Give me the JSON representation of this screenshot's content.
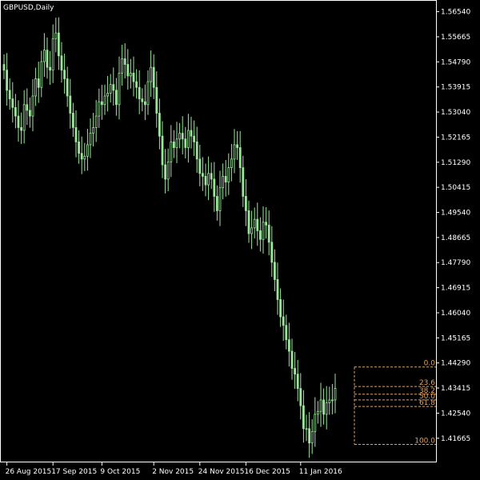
{
  "chart_data": {
    "type": "candlestick",
    "title": "GBPUSD,Daily",
    "ylim": [
      1.4085,
      1.5692
    ],
    "y_ticks": [
      "1.56540",
      "1.55665",
      "1.54790",
      "1.53915",
      "1.53040",
      "1.52165",
      "1.51290",
      "1.50415",
      "1.49540",
      "1.48665",
      "1.47790",
      "1.46915",
      "1.46040",
      "1.45165",
      "1.44290",
      "1.43415",
      "1.42540",
      "1.41665"
    ],
    "x_ticks": [
      "26 Aug 2015",
      "17 Sep 2015",
      "9 Oct 2015",
      "2 Nov 2015",
      "24 Nov 2015",
      "16 Dec 2015",
      "11 Jan 2016"
    ],
    "x_tick_bar_index": [
      1,
      17,
      34,
      52,
      68,
      84,
      103
    ],
    "close": [
      1.545,
      1.538,
      1.535,
      1.532,
      1.529,
      1.525,
      1.524,
      1.533,
      1.531,
      1.529,
      1.536,
      1.542,
      1.539,
      1.548,
      1.552,
      1.546,
      1.545,
      1.556,
      1.558,
      1.55,
      1.545,
      1.542,
      1.536,
      1.53,
      1.525,
      1.52,
      1.516,
      1.514,
      1.515,
      1.519,
      1.523,
      1.525,
      1.529,
      1.534,
      1.533,
      1.536,
      1.537,
      1.54,
      1.538,
      1.533,
      1.544,
      1.549,
      1.547,
      1.543,
      1.544,
      1.541,
      1.539,
      1.535,
      1.534,
      1.533,
      1.541,
      1.546,
      1.539,
      1.53,
      1.522,
      1.512,
      1.507,
      1.513,
      1.52,
      1.518,
      1.521,
      1.523,
      1.521,
      1.518,
      1.524,
      1.522,
      1.52,
      1.514,
      1.509,
      1.508,
      1.505,
      1.509,
      1.507,
      1.501,
      1.496,
      1.504,
      1.508,
      1.506,
      1.511,
      1.514,
      1.519,
      1.518,
      1.511,
      1.501,
      1.496,
      1.488,
      1.49,
      1.493,
      1.489,
      1.486,
      1.492,
      1.491,
      1.485,
      1.478,
      1.472,
      1.465,
      1.459,
      1.456,
      1.451,
      1.447,
      1.441,
      1.439,
      1.434,
      1.428,
      1.42,
      1.42,
      1.415,
      1.419,
      1.425,
      1.426,
      1.43,
      1.425,
      1.429,
      1.43,
      1.43,
      1.434
    ],
    "fibonacci": {
      "levels": [
        {
          "label": "0.0",
          "value": 1.4415
        },
        {
          "label": "23.6",
          "value": 1.4347
        },
        {
          "label": "38.2",
          "value": 1.432
        },
        {
          "label": "50.0",
          "value": 1.43
        },
        {
          "label": "61.8",
          "value": 1.4277
        },
        {
          "label": "100.0",
          "value": 1.4145
        }
      ],
      "color": "#e3a264"
    },
    "grid": false,
    "colors": {
      "background": "#000000",
      "candle": "#9be59b",
      "axis": "#ffffff",
      "text": "#ffffff"
    }
  }
}
